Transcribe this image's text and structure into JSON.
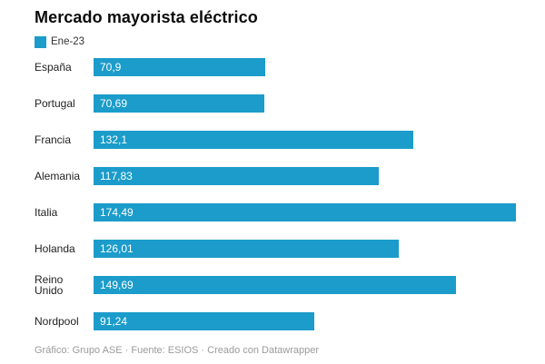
{
  "title": "Mercado mayorista eléctrico",
  "legend": {
    "label": "Ene-23",
    "color": "#1b9cca"
  },
  "footer": "Gráfico: Grupo ASE · Fuente: ESIOS · Creado con Datawrapper",
  "chart_data": {
    "type": "bar",
    "orientation": "horizontal",
    "title": "Mercado mayorista eléctrico",
    "series_name": "Ene-23",
    "categories": [
      "España",
      "Portugal",
      "Francia",
      "Alemania",
      "Italia",
      "Holanda",
      "Reino Unido",
      "Nordpool"
    ],
    "values": [
      70.9,
      70.69,
      132.1,
      117.83,
      174.49,
      126.01,
      149.69,
      91.24
    ],
    "value_labels": [
      "70,9",
      "70,69",
      "132,1",
      "117,83",
      "174,49",
      "126,01",
      "149,69",
      "91,24"
    ],
    "xlabel": "",
    "ylabel": "",
    "xlim": [
      0,
      174.49
    ],
    "grid": false,
    "legend_position": "top-left",
    "bar_color": "#1b9cca",
    "value_label_position": "inside-left"
  }
}
